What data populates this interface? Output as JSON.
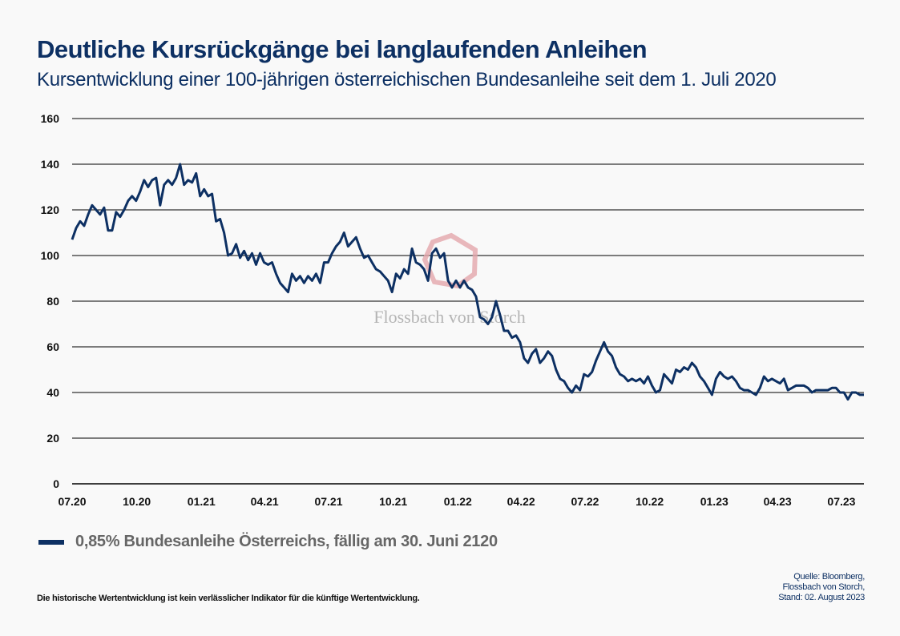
{
  "header": {
    "title": "Deutliche Kursrückgänge bei langlaufenden Anleihen",
    "subtitle": "Kursentwicklung einer 100-jährigen österreichischen Bundesanleihe seit dem 1. Juli 2020"
  },
  "footer": {
    "disclaimer": "Die historische Wertentwicklung ist kein verlässlicher Indikator für die künftige Wertentwicklung.",
    "source_lines": [
      "Quelle: Bloomberg,",
      "Flossbach von Storch,",
      "Stand: 02. August 2023"
    ]
  },
  "watermark": {
    "text": "Flossbach von Storch",
    "color": "#e3a6ab"
  },
  "chart_data": {
    "type": "line",
    "title": "",
    "xlabel": "",
    "ylabel": "",
    "ylim": [
      0,
      160
    ],
    "yticks": [
      "0",
      "20",
      "40",
      "60",
      "80",
      "100",
      "120",
      "140",
      "160"
    ],
    "x_range": [
      "2020-07-01",
      "2023-08-02"
    ],
    "xticks": [
      "07.20",
      "10.20",
      "01.21",
      "04.21",
      "07.21",
      "10.21",
      "01.22",
      "04.22",
      "07.22",
      "10.22",
      "01.23",
      "04.23",
      "07.23"
    ],
    "grid": "horizontal",
    "legend_position": "bottom-left",
    "series": [
      {
        "name": "0,85% Bundesanleihe Österreichs, fällig am 30. Juni 2120",
        "color": "#0d3063",
        "values": [
          107,
          112,
          115,
          113,
          118,
          122,
          120,
          118,
          121,
          111,
          111,
          119,
          117,
          120,
          124,
          126,
          124,
          128,
          133,
          130,
          133,
          134,
          122,
          131,
          133,
          131,
          134,
          140,
          131,
          133,
          132,
          136,
          126,
          129,
          126,
          127,
          115,
          116,
          110,
          100,
          101,
          105,
          99,
          102,
          98,
          101,
          96,
          101,
          97,
          96,
          97,
          92,
          88,
          86,
          84,
          92,
          89,
          91,
          88,
          91,
          89,
          92,
          88,
          97,
          97,
          101,
          104,
          106,
          110,
          104,
          106,
          108,
          103,
          99,
          100,
          97,
          94,
          93,
          91,
          89,
          84,
          92,
          90,
          94,
          92,
          103,
          97,
          96,
          94,
          89,
          101,
          103,
          99,
          101,
          89,
          86,
          89,
          86,
          89,
          86,
          85,
          82,
          73,
          72,
          70,
          73,
          80,
          74,
          67,
          67,
          64,
          65,
          62,
          55,
          53,
          57,
          59,
          53,
          55,
          58,
          56,
          50,
          46,
          45,
          42,
          40,
          43,
          41,
          48,
          47,
          49,
          54,
          58,
          62,
          58,
          56,
          51,
          48,
          47,
          45,
          46,
          45,
          46,
          44,
          47,
          43,
          40,
          41,
          48,
          46,
          44,
          50,
          49,
          51,
          50,
          53,
          51,
          47,
          45,
          42,
          39,
          46,
          49,
          47,
          46,
          47,
          45,
          42,
          41,
          41,
          40,
          39,
          42,
          47,
          45,
          46,
          45,
          44,
          46,
          41,
          42,
          43,
          43,
          43,
          42,
          40,
          41,
          41,
          41,
          41,
          42,
          42,
          40,
          40,
          37,
          40,
          40,
          39,
          39
        ]
      }
    ]
  }
}
